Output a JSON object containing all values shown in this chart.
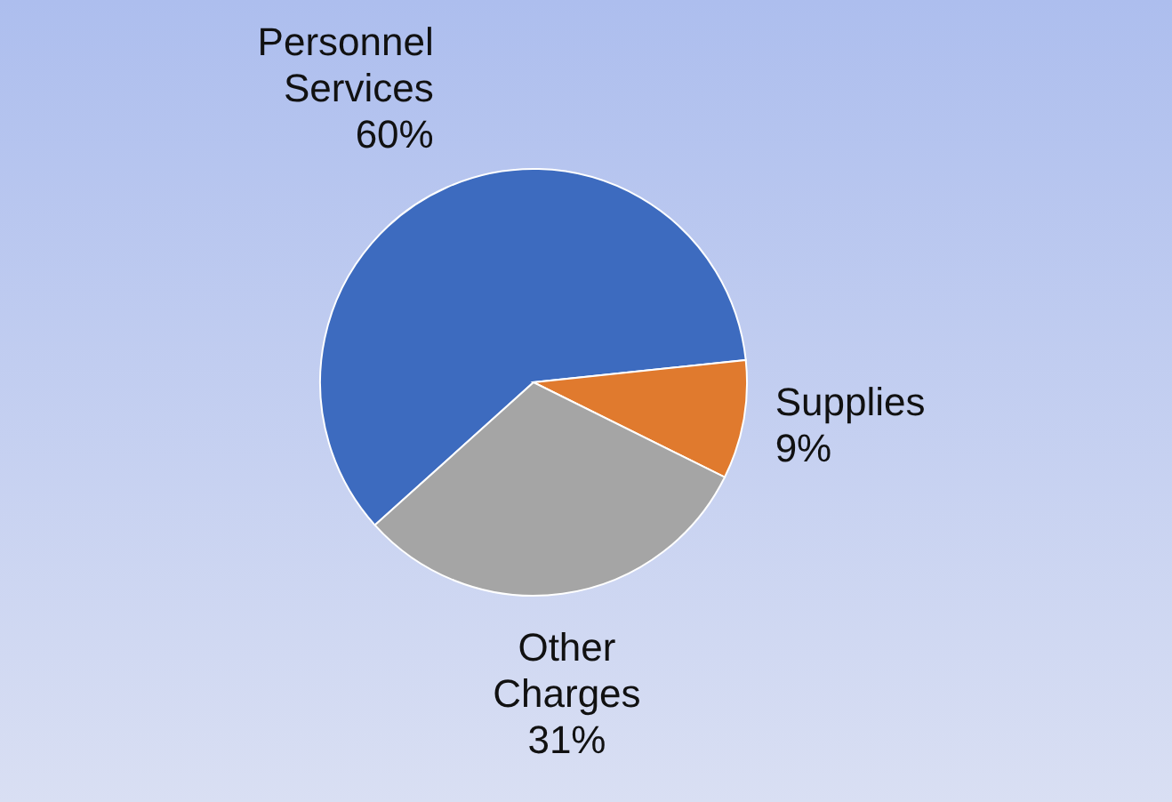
{
  "chart_data": {
    "type": "pie",
    "categories": [
      "Personnel Services",
      "Supplies",
      "Other Charges"
    ],
    "values": [
      60,
      9,
      31
    ],
    "colors": [
      "#3d6bbf",
      "#e07a2e",
      "#a5a5a5"
    ],
    "value_labels": [
      "60%",
      "9%",
      "31%"
    ]
  }
}
